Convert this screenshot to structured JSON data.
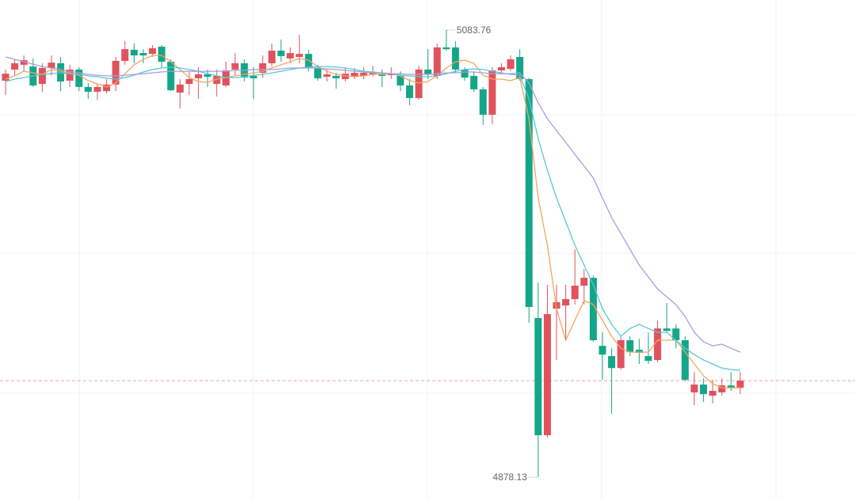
{
  "chart_data": {
    "type": "candlestick",
    "up_color": "#e0525d",
    "down_color": "#14a689",
    "ylim": [
      4867.6,
      5097.6
    ],
    "max_label": "5083.76",
    "min_label": "4878.13",
    "open": [
      5060.5,
      5065.6,
      5067.8,
      5067.0,
      5059.0,
      5066.3,
      5068.5,
      5060.5,
      5065.6,
      5057.6,
      5055.4,
      5055.7,
      5058.7,
      5069.6,
      5074.7,
      5073.2,
      5072.8,
      5076.1,
      5069.2,
      5055.0,
      5059.0,
      5061.6,
      5063.4,
      5059.0,
      5058.3,
      5065.6,
      5068.5,
      5062.7,
      5064.1,
      5068.5,
      5074.3,
      5070.7,
      5071.4,
      5072.8,
      5066.3,
      5062.3,
      5062.7,
      5061.2,
      5062.3,
      5062.7,
      5063.4,
      5063.7,
      5063.0,
      5062.7,
      5058.3,
      5052.5,
      5065.6,
      5062.7,
      5075.8,
      5075.8,
      5065.6,
      5062.7,
      5056.5,
      5044.8,
      5065.2,
      5065.9,
      5071.4,
      5061.2,
      4951.3,
      4897.4,
      4955.6,
      4957.1,
      4960.0,
      4966.2,
      4969.8,
      4938.5,
      4933.8,
      4928.3,
      4941.1,
      4936.7,
      4933.8,
      4932.0,
      4946.5,
      4946.5,
      4941.1,
      4917.1,
      4920.7,
      4915.6,
      4917.1,
      4920.3,
      4919.2
    ],
    "high": [
      5065.6,
      5070.3,
      5072.1,
      5070.7,
      5068.5,
      5072.1,
      5071.4,
      5067.8,
      5066.7,
      5059.4,
      5059.0,
      5061.2,
      5071.4,
      5078.7,
      5077.6,
      5075.0,
      5076.9,
      5076.9,
      5070.3,
      5061.2,
      5064.8,
      5066.7,
      5065.6,
      5065.6,
      5069.2,
      5073.2,
      5070.3,
      5066.7,
      5072.1,
      5077.6,
      5079.4,
      5075.8,
      5081.6,
      5074.7,
      5067.8,
      5065.9,
      5064.1,
      5066.7,
      5066.3,
      5066.7,
      5067.4,
      5065.6,
      5066.7,
      5064.8,
      5061.2,
      5067.4,
      5075.0,
      5077.6,
      5083.76,
      5078.7,
      5066.7,
      5064.8,
      5057.6,
      5066.7,
      5068.5,
      5072.1,
      5075.0,
      5061.9,
      4967.7,
      4966.6,
      4966.6,
      4966.6,
      4982.9,
      4973.8,
      4970.9,
      4944.7,
      4937.4,
      4942.9,
      4942.9,
      4941.8,
      4944.7,
      4950.2,
      4958.2,
      4948.4,
      4942.9,
      4926.5,
      4923.6,
      4922.9,
      4923.6,
      4926.5,
      4926.5
    ],
    "low": [
      5053.9,
      5063.0,
      5064.8,
      5057.6,
      5055.4,
      5063.0,
      5055.7,
      5057.6,
      5055.7,
      5052.1,
      5051.7,
      5054.6,
      5055.7,
      5067.8,
      5068.5,
      5068.5,
      5071.4,
      5066.7,
      5055.7,
      5047.7,
      5053.9,
      5052.1,
      5057.6,
      5053.2,
      5057.6,
      5063.0,
      5060.1,
      5052.1,
      5061.9,
      5067.0,
      5069.2,
      5068.5,
      5068.5,
      5064.8,
      5060.5,
      5060.1,
      5056.8,
      5060.1,
      5061.2,
      5061.2,
      5062.3,
      5057.6,
      5061.2,
      5055.7,
      5049.2,
      5051.7,
      5061.2,
      5061.2,
      5074.3,
      5064.1,
      5060.5,
      5055.4,
      5040.1,
      5040.5,
      5064.1,
      5064.8,
      5060.5,
      4949.1,
      4878.13,
      4896.3,
      4932.0,
      4941.1,
      4957.5,
      4957.5,
      4940.4,
      4922.9,
      4907.2,
      4927.6,
      4933.8,
      4930.2,
      4930.2,
      4930.9,
      4944.7,
      4937.4,
      4922.2,
      4911.2,
      4912.7,
      4912.0,
      4915.6,
      4917.8,
      4916.3
    ],
    "close": [
      5063.7,
      5068.5,
      5069.9,
      5058.3,
      5066.3,
      5068.8,
      5060.1,
      5065.6,
      5057.6,
      5055.4,
      5057.6,
      5058.7,
      5069.6,
      5075.0,
      5072.1,
      5072.1,
      5075.4,
      5069.2,
      5056.1,
      5058.7,
      5061.2,
      5063.4,
      5062.3,
      5062.7,
      5065.2,
      5068.5,
      5061.9,
      5061.6,
      5068.5,
      5074.3,
      5071.8,
      5073.2,
      5072.8,
      5066.3,
      5061.6,
      5063.4,
      5061.6,
      5063.7,
      5064.1,
      5064.1,
      5064.5,
      5062.7,
      5063.7,
      5058.3,
      5052.5,
      5065.6,
      5063.4,
      5075.8,
      5075.0,
      5065.6,
      5061.9,
      5056.5,
      5044.8,
      5065.2,
      5066.7,
      5070.3,
      5061.2,
      4956.4,
      4897.4,
      4953.1,
      4958.6,
      4960.0,
      4966.2,
      4969.8,
      4941.1,
      4934.5,
      4928.3,
      4941.1,
      4935.6,
      4935.3,
      4931.6,
      4946.5,
      4945.4,
      4941.1,
      4922.9,
      4920.7,
      4916.3,
      4917.8,
      4920.3,
      4919.2,
      4922.5
    ],
    "lines": [
      {
        "color": "#f2a65e",
        "values": [
          5061.2,
          5062.7,
          5064.8,
          5064.1,
          5063.4,
          5065.6,
          5064.8,
          5064.1,
          5063.0,
          5060.5,
          5059.0,
          5057.6,
          5059.4,
          5063.7,
          5067.8,
          5070.3,
          5072.1,
          5072.1,
          5069.2,
          5065.6,
          5061.9,
          5060.1,
          5059.7,
          5061.2,
          5061.9,
          5062.7,
          5063.4,
          5064.1,
          5064.8,
          5066.3,
          5067.8,
          5069.2,
          5070.7,
          5069.9,
          5067.0,
          5064.8,
          5063.4,
          5062.7,
          5062.3,
          5062.7,
          5063.4,
          5063.4,
          5063.7,
          5062.7,
          5060.5,
          5059.4,
          5060.1,
          5062.7,
          5066.3,
          5069.2,
          5069.9,
          5068.5,
          5063.0,
          5061.2,
          5061.2,
          5060.5,
          5061.9,
          5043.0,
          5006.6,
          4984.8,
          4955.6,
          4941.1,
          4950.2,
          4959.3,
          4957.5,
          4950.2,
          4942.9,
          4937.4,
          4935.6,
          4935.6,
          4935.6,
          4941.1,
          4941.1,
          4941.1,
          4935.6,
          4930.2,
          4924.7,
          4921.1,
          4919.2,
          4919.2,
          4919.2
        ]
      },
      {
        "color": "#56c8d6",
        "values": [
          5060.1,
          5061.2,
          5061.9,
          5062.7,
          5063.4,
          5063.7,
          5064.1,
          5063.7,
          5063.4,
          5062.7,
          5062.3,
          5061.6,
          5061.2,
          5061.9,
          5063.0,
          5064.5,
          5065.6,
          5066.3,
          5066.7,
          5066.3,
          5065.6,
          5064.8,
          5063.7,
          5062.7,
          5061.9,
          5061.9,
          5062.3,
          5063.0,
          5063.4,
          5064.1,
          5064.8,
          5065.6,
          5066.3,
          5066.7,
          5067.0,
          5067.0,
          5066.7,
          5066.3,
          5065.6,
          5064.8,
          5064.5,
          5064.1,
          5063.7,
          5063.0,
          5062.7,
          5062.3,
          5062.3,
          5062.7,
          5063.7,
          5064.8,
          5065.6,
          5065.9,
          5065.6,
          5064.8,
          5064.1,
          5063.4,
          5063.0,
          5052.1,
          5033.9,
          5019.3,
          5006.6,
          4995.7,
          4984.8,
          4975.7,
          4966.6,
          4955.6,
          4948.4,
          4942.9,
          4946.5,
          4948.4,
          4946.5,
          4944.7,
          4944.7,
          4941.1,
          4937.4,
          4934.5,
          4932.0,
          4930.2,
          4928.3,
          4927.6,
          4927.2
        ]
      },
      {
        "color": "#ab9cdb",
        "values": [
          5071.4,
          5070.3,
          5069.2,
          5068.1,
          5067.0,
          5066.3,
          5065.6,
          5064.8,
          5064.1,
          5063.4,
          5063.0,
          5062.7,
          5062.7,
          5063.0,
          5063.4,
          5063.7,
          5064.1,
          5064.5,
          5064.8,
          5064.8,
          5064.8,
          5064.8,
          5064.8,
          5064.8,
          5064.8,
          5065.2,
          5065.2,
          5065.6,
          5065.6,
          5065.6,
          5065.9,
          5066.3,
          5066.3,
          5066.3,
          5066.3,
          5065.9,
          5065.6,
          5065.2,
          5064.8,
          5064.5,
          5064.1,
          5064.1,
          5063.7,
          5063.7,
          5063.4,
          5063.4,
          5063.4,
          5063.7,
          5064.1,
          5064.1,
          5064.5,
          5064.5,
          5064.1,
          5063.7,
          5063.7,
          5063.7,
          5064.1,
          5059.4,
          5050.3,
          5043.0,
          5037.5,
          5032.1,
          5026.6,
          5021.2,
          5015.7,
          5006.6,
          4997.5,
          4990.2,
          4982.9,
          4975.7,
          4970.2,
          4964.7,
          4961.1,
          4957.5,
          4952.0,
          4944.7,
          4940.4,
          4938.5,
          4939.3,
          4937.4,
          4935.6
        ]
      }
    ]
  }
}
